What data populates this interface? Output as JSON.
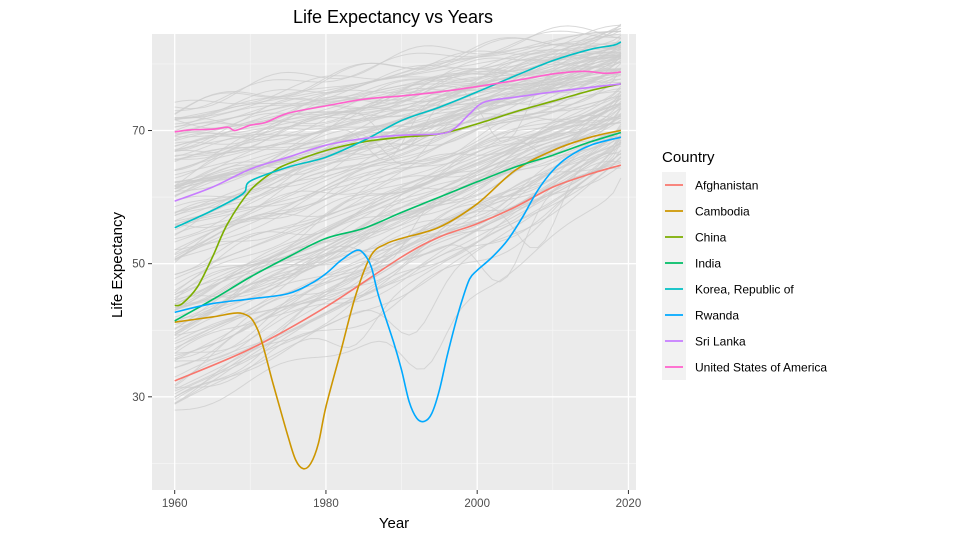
{
  "chart_data": {
    "type": "line",
    "title": "Life Expectancy vs Years",
    "xlabel": "Year",
    "ylabel": "Life Expectancy",
    "xlim": [
      1957,
      2021
    ],
    "ylim": [
      16,
      84.5
    ],
    "x_ticks": [
      1960,
      1980,
      2000,
      2020
    ],
    "y_ticks": [
      30,
      50,
      70
    ],
    "grid": true,
    "legend": {
      "title": "Country",
      "placement": "right"
    },
    "background_lines": {
      "description_color": "#cccccc",
      "start_range": [
        28,
        74
      ],
      "end_range": [
        53,
        85
      ]
    },
    "series": [
      {
        "name": "Afghanistan",
        "color": "#F8766D",
        "points": [
          [
            1960,
            32.4
          ],
          [
            1970,
            37.2
          ],
          [
            1980,
            43.5
          ],
          [
            1990,
            51
          ],
          [
            1995,
            54
          ],
          [
            2000,
            56
          ],
          [
            2005,
            58.5
          ],
          [
            2010,
            61.5
          ],
          [
            2015,
            63.5
          ],
          [
            2019,
            64.8
          ]
        ]
      },
      {
        "name": "Cambodia",
        "color": "#CD9600",
        "points": [
          [
            1960,
            41.2
          ],
          [
            1965,
            42
          ],
          [
            1969,
            42.5
          ],
          [
            1971,
            40
          ],
          [
            1973,
            32
          ],
          [
            1975,
            24
          ],
          [
            1976,
            20.5
          ],
          [
            1977,
            19.2
          ],
          [
            1978,
            20
          ],
          [
            1979,
            23
          ],
          [
            1980,
            28.5
          ],
          [
            1982,
            37
          ],
          [
            1984,
            45.5
          ],
          [
            1986,
            51.3
          ],
          [
            1988,
            53
          ],
          [
            1990,
            53.8
          ],
          [
            1995,
            55.5
          ],
          [
            2000,
            59
          ],
          [
            2005,
            64
          ],
          [
            2010,
            67
          ],
          [
            2015,
            69
          ],
          [
            2019,
            70
          ]
        ]
      },
      {
        "name": "China",
        "color": "#7CAE00",
        "points": [
          [
            1960,
            43.7
          ],
          [
            1961,
            44
          ],
          [
            1963,
            46.5
          ],
          [
            1965,
            51
          ],
          [
            1967,
            56
          ],
          [
            1970,
            61
          ],
          [
            1973,
            63.8
          ],
          [
            1975,
            65
          ],
          [
            1980,
            67
          ],
          [
            1985,
            68.3
          ],
          [
            1990,
            69
          ],
          [
            1995,
            69.5
          ],
          [
            2000,
            71
          ],
          [
            2005,
            72.8
          ],
          [
            2010,
            74.4
          ],
          [
            2015,
            76
          ],
          [
            2019,
            77
          ]
        ]
      },
      {
        "name": "India",
        "color": "#00BE67",
        "points": [
          [
            1960,
            41.4
          ],
          [
            1965,
            44.6
          ],
          [
            1970,
            48
          ],
          [
            1975,
            51
          ],
          [
            1980,
            53.8
          ],
          [
            1985,
            55.3
          ],
          [
            1990,
            57.7
          ],
          [
            1995,
            60
          ],
          [
            2000,
            62.3
          ],
          [
            2005,
            64.5
          ],
          [
            2010,
            66.3
          ],
          [
            2015,
            68.3
          ],
          [
            2019,
            69.7
          ]
        ]
      },
      {
        "name": "Korea, Republic of",
        "color": "#00BFC4",
        "points": [
          [
            1960,
            55.4
          ],
          [
            1965,
            58
          ],
          [
            1969,
            60.5
          ],
          [
            1970,
            62.4
          ],
          [
            1975,
            64.5
          ],
          [
            1980,
            66
          ],
          [
            1985,
            68.5
          ],
          [
            1990,
            71.5
          ],
          [
            1995,
            73.5
          ],
          [
            2000,
            75.8
          ],
          [
            2005,
            78.2
          ],
          [
            2010,
            80.5
          ],
          [
            2015,
            82.2
          ],
          [
            2018,
            82.8
          ],
          [
            2019,
            83.3
          ]
        ]
      },
      {
        "name": "Rwanda",
        "color": "#00A9FF",
        "points": [
          [
            1960,
            42.7
          ],
          [
            1965,
            44
          ],
          [
            1970,
            44.7
          ],
          [
            1975,
            45.5
          ],
          [
            1978,
            47
          ],
          [
            1980,
            48.5
          ],
          [
            1982,
            50.5
          ],
          [
            1984,
            52
          ],
          [
            1985,
            51.5
          ],
          [
            1986,
            49.5
          ],
          [
            1987,
            45
          ],
          [
            1989,
            38
          ],
          [
            1990,
            34
          ],
          [
            1991,
            29.3
          ],
          [
            1992,
            26.8
          ],
          [
            1993,
            26.3
          ],
          [
            1994,
            27.5
          ],
          [
            1995,
            31
          ],
          [
            1996,
            36
          ],
          [
            1997,
            40.5
          ],
          [
            1998,
            44.5
          ],
          [
            1999,
            47.7
          ],
          [
            2000,
            49
          ],
          [
            2002,
            51
          ],
          [
            2004,
            53.5
          ],
          [
            2006,
            57
          ],
          [
            2008,
            61
          ],
          [
            2010,
            64
          ],
          [
            2012,
            66
          ],
          [
            2015,
            67.8
          ],
          [
            2019,
            69
          ]
        ]
      },
      {
        "name": "Sri Lanka",
        "color": "#C77CFF",
        "points": [
          [
            1960,
            59.4
          ],
          [
            1965,
            61.5
          ],
          [
            1970,
            64.2
          ],
          [
            1975,
            66
          ],
          [
            1980,
            67.8
          ],
          [
            1985,
            68.8
          ],
          [
            1990,
            69.3
          ],
          [
            1995,
            69.5
          ],
          [
            1997,
            70.3
          ],
          [
            1999,
            72.5
          ],
          [
            2001,
            74.3
          ],
          [
            2005,
            75
          ],
          [
            2010,
            75.8
          ],
          [
            2015,
            76.5
          ],
          [
            2019,
            77
          ]
        ]
      },
      {
        "name": "United States of America",
        "color": "#FF61CC",
        "points": [
          [
            1960,
            69.8
          ],
          [
            1962,
            70.1
          ],
          [
            1965,
            70.2
          ],
          [
            1967,
            70.5
          ],
          [
            1968,
            70
          ],
          [
            1970,
            70.8
          ],
          [
            1972,
            71.2
          ],
          [
            1975,
            72.6
          ],
          [
            1980,
            73.7
          ],
          [
            1985,
            74.7
          ],
          [
            1990,
            75.2
          ],
          [
            1995,
            75.8
          ],
          [
            2000,
            76.6
          ],
          [
            2005,
            77.5
          ],
          [
            2010,
            78.5
          ],
          [
            2014,
            78.9
          ],
          [
            2017,
            78.6
          ],
          [
            2019,
            78.8
          ]
        ]
      }
    ]
  }
}
